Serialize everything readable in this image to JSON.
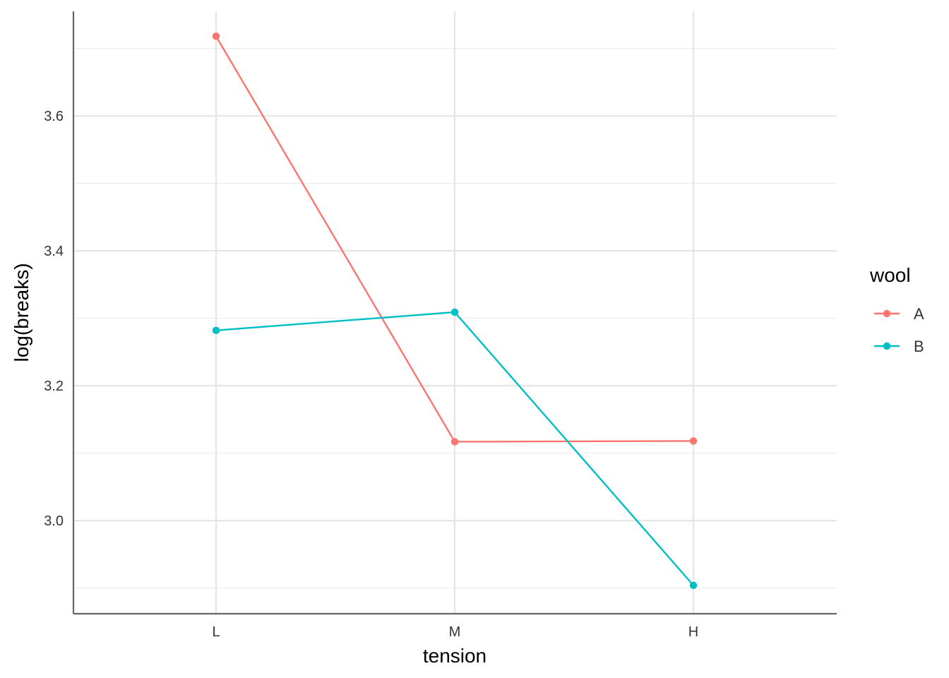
{
  "chart_data": {
    "type": "line",
    "xlabel": "tension",
    "ylabel": "log(breaks)",
    "categories": [
      "L",
      "M",
      "H"
    ],
    "ylim": [
      2.862,
      3.755
    ],
    "yticks": [
      3.0,
      3.2,
      3.4,
      3.6
    ],
    "ytick_labels": [
      "3.0",
      "3.2",
      "3.4",
      "3.6"
    ],
    "grid": true,
    "legend": {
      "title": "wool",
      "position": "right"
    },
    "series": [
      {
        "name": "A",
        "color": "#F8766D",
        "values": [
          3.718,
          3.117,
          3.118
        ]
      },
      {
        "name": "B",
        "color": "#00BFC4",
        "values": [
          3.282,
          3.309,
          2.904
        ]
      }
    ]
  }
}
